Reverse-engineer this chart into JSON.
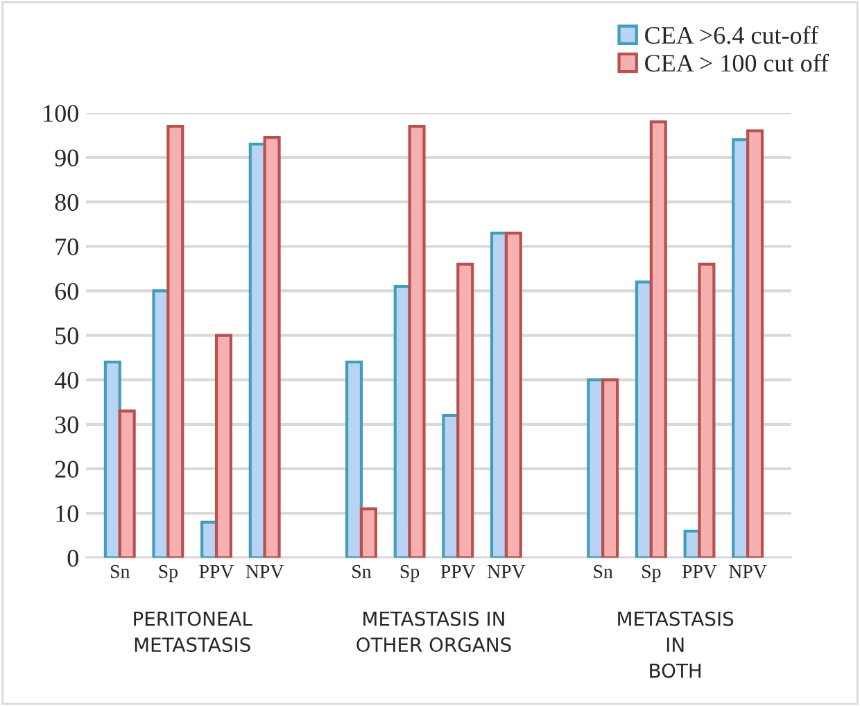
{
  "chart_data": {
    "type": "bar",
    "categories": [
      "Sn",
      "Sp",
      "PPV",
      "NPV",
      "Sn",
      "Sp",
      "PPV",
      "NPV",
      "Sn",
      "Sp",
      "PPV",
      "NPV"
    ],
    "series": [
      {
        "name": "CEA >6.4 cut-off",
        "color": "#b9d3f5",
        "values": [
          44,
          60,
          8,
          93,
          44,
          61,
          32,
          73,
          40,
          62,
          6,
          94
        ]
      },
      {
        "name": "CEA > 100 cut off",
        "color": "#f7b0b0",
        "values": [
          33,
          97,
          50,
          94.5,
          11,
          97,
          66,
          73,
          40,
          98,
          66,
          96
        ]
      }
    ],
    "annotations": [
      "PERITONEAL\nMETASTASIS",
      "METASTASIS IN\nOTHER ORGANS",
      "METASTASIS\nIN\nBOTH"
    ],
    "ylim": [
      0,
      100
    ],
    "yticks": [
      0,
      10,
      20,
      30,
      40,
      50,
      60,
      70,
      80,
      90,
      100
    ],
    "grid": "y",
    "legend": "top right"
  }
}
